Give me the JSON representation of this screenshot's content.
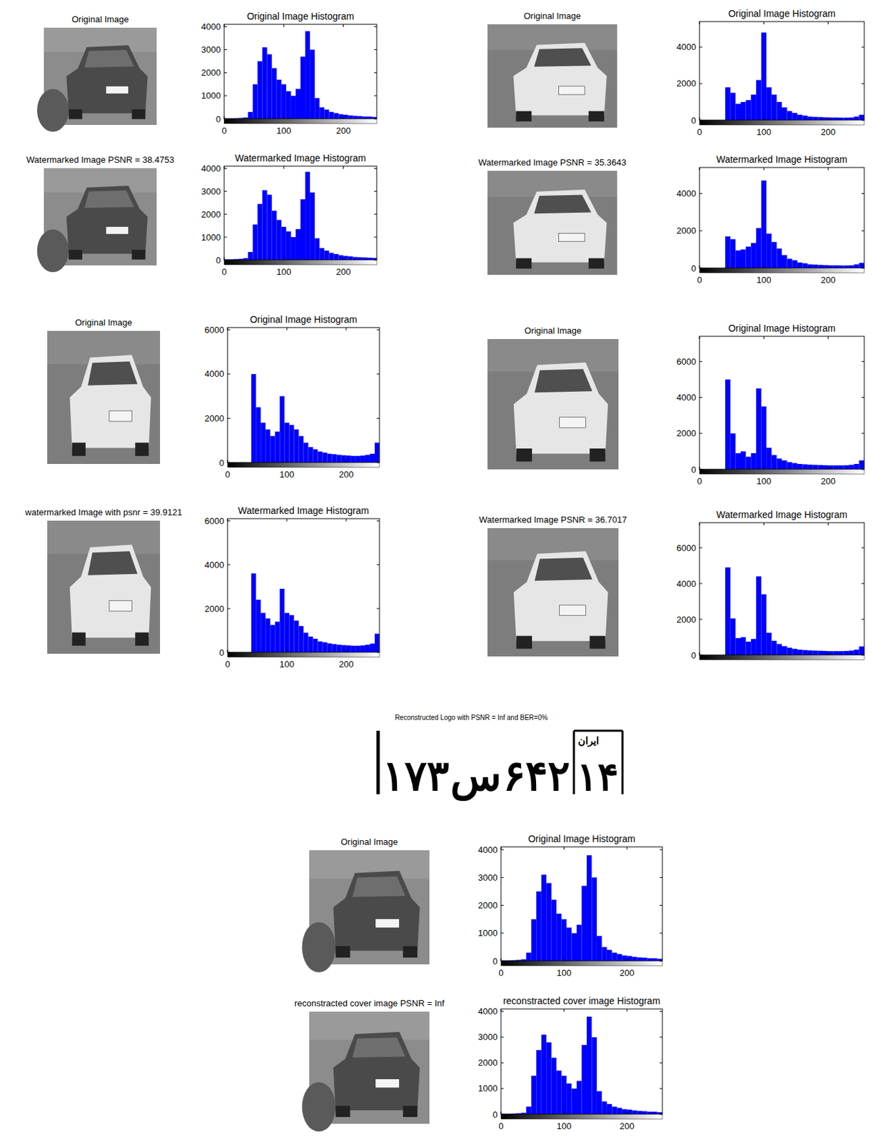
{
  "chart_data": [
    {
      "type": "histogram",
      "image_title": "Original Image",
      "title": "Original Image Histogram",
      "bins": [
        0,
        8,
        16,
        24,
        32,
        40,
        48,
        56,
        64,
        72,
        80,
        88,
        96,
        104,
        112,
        120,
        128,
        136,
        144,
        152,
        160,
        168,
        176,
        184,
        192,
        200,
        208,
        216,
        224,
        232,
        240,
        248,
        256
      ],
      "values": [
        20,
        20,
        30,
        40,
        60,
        300,
        1500,
        2500,
        3100,
        2800,
        2200,
        1700,
        1500,
        1200,
        1000,
        1300,
        2700,
        3800,
        3000,
        900,
        500,
        400,
        300,
        250,
        200,
        180,
        150,
        130,
        120,
        100,
        100,
        80
      ],
      "color": "#0000ff",
      "xlim": [
        0,
        256
      ],
      "ylim": [
        0,
        4100
      ],
      "xticks": [
        0,
        100,
        200
      ],
      "yticks": [
        0,
        1000,
        2000,
        3000,
        4000
      ],
      "grid": false
    },
    {
      "type": "histogram",
      "image_title": "Watermarked Image  PSNR = 38.4753",
      "title": "Watermarked Image Histogram",
      "bins": [
        0,
        8,
        16,
        24,
        32,
        40,
        48,
        56,
        64,
        72,
        80,
        88,
        96,
        104,
        112,
        120,
        128,
        136,
        144,
        152,
        160,
        168,
        176,
        184,
        192,
        200,
        208,
        216,
        224,
        232,
        240,
        248,
        256
      ],
      "values": [
        30,
        30,
        40,
        50,
        80,
        350,
        1550,
        2450,
        3050,
        2850,
        2150,
        1750,
        1450,
        1250,
        1000,
        1350,
        2650,
        3850,
        2950,
        950,
        520,
        410,
        310,
        260,
        210,
        180,
        160,
        130,
        120,
        110,
        100,
        90
      ],
      "color": "#0000ff",
      "xlim": [
        0,
        256
      ],
      "ylim": [
        0,
        4100
      ],
      "xticks": [
        0,
        100,
        200
      ],
      "yticks": [
        0,
        1000,
        2000,
        3000,
        4000
      ],
      "grid": false
    },
    {
      "type": "histogram",
      "image_title": "Original Image",
      "title": "Original Image Histogram",
      "bins": [
        0,
        8,
        16,
        24,
        32,
        40,
        48,
        56,
        64,
        72,
        80,
        88,
        96,
        104,
        112,
        120,
        128,
        136,
        144,
        152,
        160,
        168,
        176,
        184,
        192,
        200,
        208,
        216,
        224,
        232,
        240,
        248,
        256
      ],
      "values": [
        0,
        0,
        0,
        0,
        0,
        1800,
        1500,
        900,
        1000,
        1100,
        1400,
        2200,
        4800,
        1800,
        1400,
        1000,
        700,
        500,
        400,
        300,
        250,
        200,
        180,
        170,
        160,
        150,
        150,
        140,
        140,
        150,
        200,
        300
      ],
      "color": "#0000ff",
      "xlim": [
        0,
        256
      ],
      "ylim": [
        0,
        5400
      ],
      "xticks": [
        0,
        100,
        200
      ],
      "yticks": [
        0,
        2000,
        4000
      ],
      "grid": false
    },
    {
      "type": "histogram",
      "image_title": "Watermarked Image  PSNR = 35.3643",
      "title": "Watermarked Image Histogram",
      "bins": [
        0,
        8,
        16,
        24,
        32,
        40,
        48,
        56,
        64,
        72,
        80,
        88,
        96,
        104,
        112,
        120,
        128,
        136,
        144,
        152,
        160,
        168,
        176,
        184,
        192,
        200,
        208,
        216,
        224,
        232,
        240,
        248,
        256
      ],
      "values": [
        0,
        0,
        0,
        0,
        0,
        1700,
        1550,
        950,
        1000,
        1150,
        1350,
        2150,
        4700,
        1850,
        1400,
        1050,
        700,
        500,
        420,
        300,
        260,
        200,
        190,
        170,
        160,
        150,
        150,
        140,
        140,
        150,
        200,
        280
      ],
      "color": "#0000ff",
      "xlim": [
        0,
        256
      ],
      "ylim": [
        0,
        5400
      ],
      "xticks": [
        0,
        100,
        200
      ],
      "yticks": [
        0,
        2000,
        4000
      ],
      "grid": false
    },
    {
      "type": "histogram",
      "image_title": "Original Image",
      "title": "Original Image Histogram",
      "bins": [
        0,
        8,
        16,
        24,
        32,
        40,
        48,
        56,
        64,
        72,
        80,
        88,
        96,
        104,
        112,
        120,
        128,
        136,
        144,
        152,
        160,
        168,
        176,
        184,
        192,
        200,
        208,
        216,
        224,
        232,
        240,
        248,
        256
      ],
      "values": [
        0,
        0,
        0,
        0,
        0,
        4000,
        2500,
        1800,
        1500,
        1200,
        1400,
        3000,
        1800,
        1700,
        1500,
        1200,
        900,
        700,
        600,
        500,
        450,
        400,
        380,
        350,
        330,
        320,
        300,
        300,
        320,
        350,
        400,
        900
      ],
      "color": "#0000ff",
      "xlim": [
        0,
        256
      ],
      "ylim": [
        0,
        6100
      ],
      "xticks": [
        0,
        100,
        200
      ],
      "yticks": [
        0,
        2000,
        4000,
        6000
      ],
      "grid": false
    },
    {
      "type": "histogram",
      "image_title": "watermarked Image with psnr = 39.9121",
      "title": "Watermarked Image Histogram",
      "bins": [
        0,
        8,
        16,
        24,
        32,
        40,
        48,
        56,
        64,
        72,
        80,
        88,
        96,
        104,
        112,
        120,
        128,
        136,
        144,
        152,
        160,
        168,
        176,
        184,
        192,
        200,
        208,
        216,
        224,
        232,
        240,
        248,
        256
      ],
      "values": [
        0,
        0,
        0,
        0,
        0,
        3600,
        2400,
        1800,
        1550,
        1250,
        1400,
        2900,
        1800,
        1700,
        1450,
        1200,
        900,
        720,
        620,
        500,
        460,
        410,
        380,
        350,
        330,
        320,
        300,
        300,
        320,
        350,
        400,
        850
      ],
      "color": "#0000ff",
      "xlim": [
        0,
        256
      ],
      "ylim": [
        0,
        6100
      ],
      "xticks": [
        0,
        100,
        200
      ],
      "yticks": [
        0,
        2000,
        4000,
        6000
      ],
      "grid": false
    },
    {
      "type": "histogram",
      "image_title": "Original Image",
      "title": "Original Image Histogram",
      "bins": [
        0,
        8,
        16,
        24,
        32,
        40,
        48,
        56,
        64,
        72,
        80,
        88,
        96,
        104,
        112,
        120,
        128,
        136,
        144,
        152,
        160,
        168,
        176,
        184,
        192,
        200,
        208,
        216,
        224,
        232,
        240,
        248,
        256
      ],
      "values": [
        0,
        0,
        0,
        0,
        0,
        5000,
        2000,
        900,
        1000,
        700,
        900,
        4500,
        3500,
        1200,
        800,
        600,
        500,
        400,
        350,
        300,
        280,
        260,
        250,
        240,
        230,
        220,
        220,
        220,
        230,
        250,
        300,
        500
      ],
      "color": "#0000ff",
      "xlim": [
        0,
        256
      ],
      "ylim": [
        0,
        7400
      ],
      "xticks": [
        0,
        100,
        200
      ],
      "yticks": [
        0,
        2000,
        4000,
        6000
      ],
      "grid": false
    },
    {
      "type": "histogram",
      "image_title": "Watermarked Image  PSNR = 36.7017",
      "title": "Watermarked Image Histogram",
      "bins": [
        0,
        8,
        16,
        24,
        32,
        40,
        48,
        56,
        64,
        72,
        80,
        88,
        96,
        104,
        112,
        120,
        128,
        136,
        144,
        152,
        160,
        168,
        176,
        184,
        192,
        200,
        208,
        216,
        224,
        232,
        240,
        248,
        256
      ],
      "values": [
        0,
        0,
        0,
        0,
        0,
        4900,
        2050,
        950,
        1000,
        750,
        900,
        4400,
        3400,
        1250,
        800,
        620,
        500,
        410,
        350,
        300,
        280,
        260,
        250,
        240,
        230,
        220,
        220,
        220,
        230,
        250,
        300,
        480
      ],
      "color": "#0000ff",
      "xlim": [
        0,
        256
      ],
      "ylim": [
        0,
        7400
      ],
      "xticks": [
        0,
        100,
        200
      ],
      "yticks": [
        0,
        2000,
        4000,
        6000
      ],
      "grid": false,
      "tick_labels": "y"
    },
    {
      "type": "histogram",
      "image_title": "Original Image",
      "title": "Original Image Histogram",
      "bins": [
        0,
        8,
        16,
        24,
        32,
        40,
        48,
        56,
        64,
        72,
        80,
        88,
        96,
        104,
        112,
        120,
        128,
        136,
        144,
        152,
        160,
        168,
        176,
        184,
        192,
        200,
        208,
        216,
        224,
        232,
        240,
        248,
        256
      ],
      "values": [
        20,
        20,
        30,
        40,
        60,
        300,
        1500,
        2500,
        3100,
        2800,
        2200,
        1700,
        1500,
        1200,
        1000,
        1300,
        2700,
        3800,
        3000,
        900,
        500,
        400,
        300,
        250,
        200,
        180,
        150,
        130,
        120,
        100,
        100,
        80
      ],
      "color": "#0000ff",
      "xlim": [
        0,
        256
      ],
      "ylim": [
        0,
        4100
      ],
      "xticks": [
        0,
        100,
        200
      ],
      "yticks": [
        0,
        1000,
        2000,
        3000,
        4000
      ],
      "grid": false
    },
    {
      "type": "histogram",
      "image_title": "reconstracted cover image PSNR = Inf",
      "title": "reconstracted cover image Histogram",
      "bins": [
        0,
        8,
        16,
        24,
        32,
        40,
        48,
        56,
        64,
        72,
        80,
        88,
        96,
        104,
        112,
        120,
        128,
        136,
        144,
        152,
        160,
        168,
        176,
        184,
        192,
        200,
        208,
        216,
        224,
        232,
        240,
        248,
        256
      ],
      "values": [
        20,
        20,
        30,
        40,
        60,
        300,
        1500,
        2500,
        3100,
        2800,
        2200,
        1700,
        1500,
        1200,
        1000,
        1300,
        2700,
        3800,
        3000,
        900,
        500,
        400,
        300,
        250,
        200,
        180,
        150,
        130,
        120,
        100,
        100,
        80
      ],
      "color": "#0000ff",
      "xlim": [
        0,
        256
      ],
      "ylim": [
        0,
        4100
      ],
      "xticks": [
        0,
        100,
        200
      ],
      "yticks": [
        0,
        1000,
        2000,
        3000,
        4000
      ],
      "grid": false
    }
  ],
  "logo": {
    "title": "Reconstructed Logo with PSNR = Inf and BER=0%",
    "plate": {
      "number_left": "۱۷۳",
      "letter": "س",
      "number_right": "۶۴۲",
      "region": "۱۴",
      "country": "ایران"
    }
  }
}
